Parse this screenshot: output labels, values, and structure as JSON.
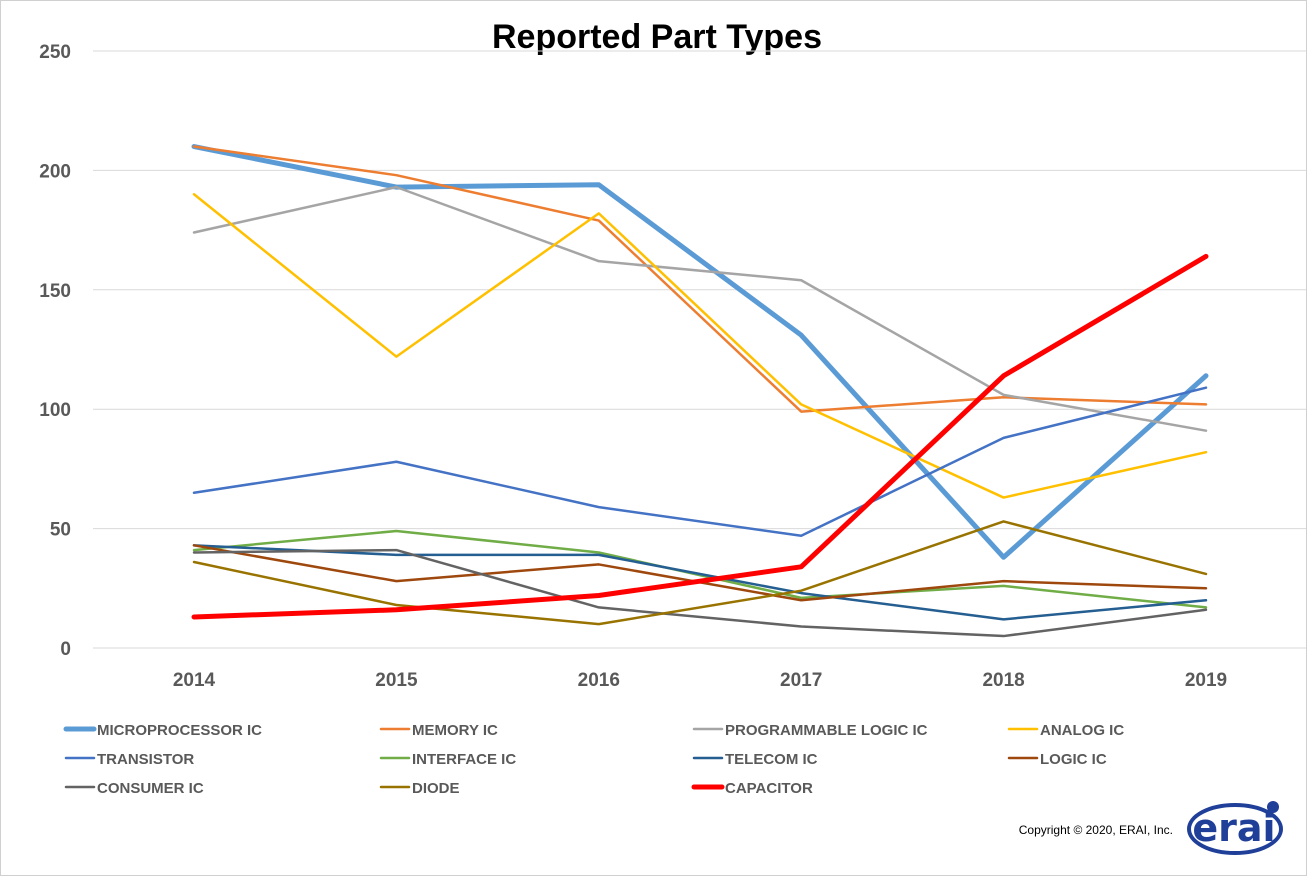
{
  "chart_data": {
    "type": "line",
    "title": "Reported Part Types",
    "categories": [
      "2014",
      "2015",
      "2016",
      "2017",
      "2018",
      "2019"
    ],
    "ylim": [
      0,
      250
    ],
    "yticks": [
      "0",
      "50",
      "100",
      "150",
      "200",
      "250"
    ],
    "grid": true,
    "legend_position": "bottom",
    "series": [
      {
        "name": "MICROPROCESSOR IC",
        "values": [
          210,
          193,
          194,
          131,
          38,
          114
        ],
        "color": "#5b9bd5",
        "width": 5
      },
      {
        "name": "MEMORY IC",
        "values": [
          210,
          198,
          179,
          99,
          105,
          102
        ],
        "color": "#ed7d31",
        "width": 2.5
      },
      {
        "name": "PROGRAMMABLE LOGIC IC",
        "values": [
          174,
          193,
          162,
          154,
          106,
          91
        ],
        "color": "#a5a5a5",
        "width": 2.5
      },
      {
        "name": "ANALOG IC",
        "values": [
          190,
          122,
          182,
          102,
          63,
          82
        ],
        "color": "#ffc000",
        "width": 2.5
      },
      {
        "name": "TRANSISTOR",
        "values": [
          65,
          78,
          59,
          47,
          88,
          109
        ],
        "color": "#4472c4",
        "width": 2.5
      },
      {
        "name": "INTERFACE IC",
        "values": [
          41,
          49,
          40,
          21,
          26,
          17
        ],
        "color": "#70ad47",
        "width": 2.5
      },
      {
        "name": "TELECOM IC",
        "values": [
          43,
          39,
          39,
          23,
          12,
          20
        ],
        "color": "#255e91",
        "width": 2.5
      },
      {
        "name": "LOGIC IC",
        "values": [
          43,
          28,
          35,
          20,
          28,
          25
        ],
        "color": "#9e480e",
        "width": 2.5
      },
      {
        "name": "CONSUMER IC",
        "values": [
          40,
          41,
          17,
          9,
          5,
          16
        ],
        "color": "#636363",
        "width": 2.5
      },
      {
        "name": "DIODE",
        "values": [
          36,
          18,
          10,
          24,
          53,
          31
        ],
        "color": "#997300",
        "width": 2.5
      },
      {
        "name": "CAPACITOR",
        "values": [
          13,
          16,
          22,
          34,
          114,
          164
        ],
        "color": "#ff0000",
        "width": 5
      }
    ]
  },
  "footer": {
    "copyright": "Copyright © 2020, ERAI, Inc.",
    "logo_text": "erai"
  }
}
